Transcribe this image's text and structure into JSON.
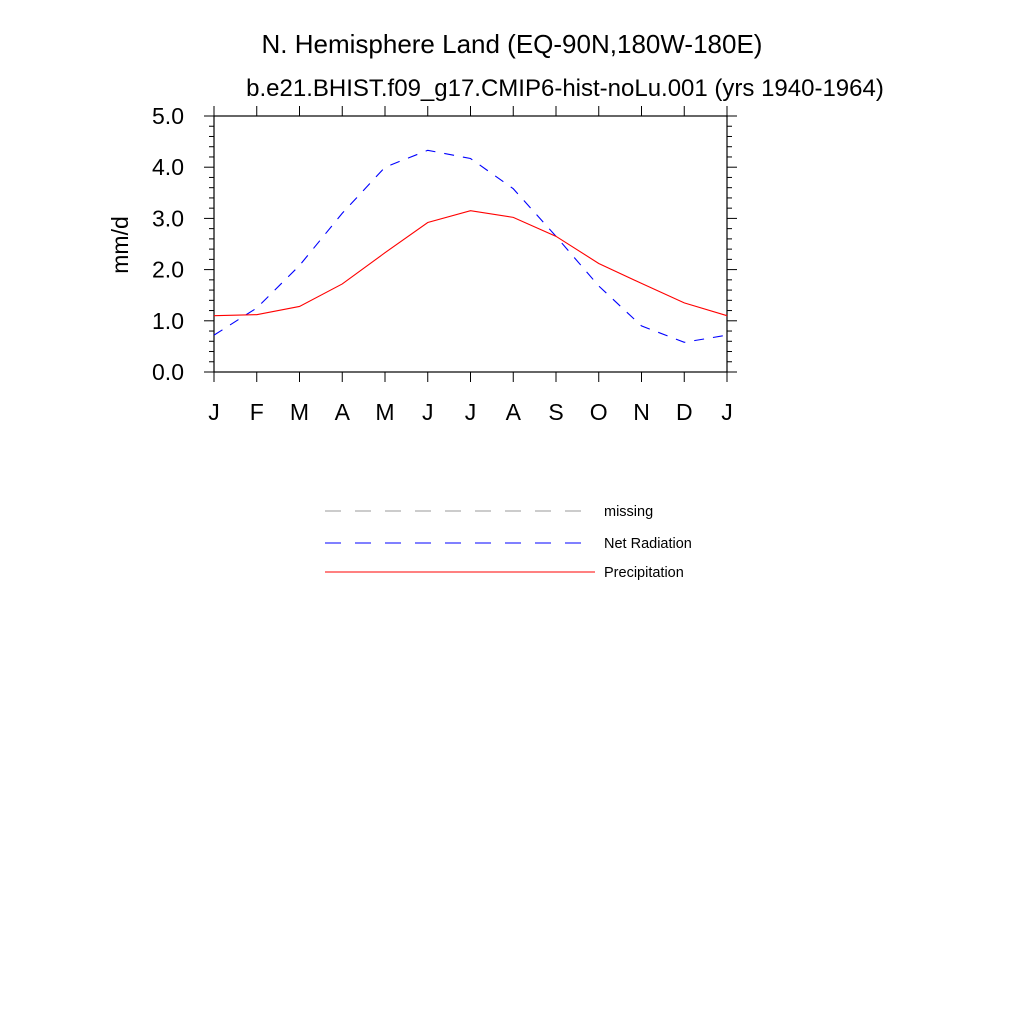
{
  "chart_data": {
    "type": "line",
    "title": "N. Hemisphere Land (EQ-90N,180W-180E)",
    "subtitle": "b.e21.BHIST.f09_g17.CMIP6-hist-noLu.001 (yrs 1940-1964)",
    "xlabel": "",
    "ylabel": "mm/d",
    "categories": [
      "J",
      "F",
      "M",
      "A",
      "M",
      "J",
      "J",
      "A",
      "S",
      "O",
      "N",
      "D",
      "J"
    ],
    "ylim": [
      0,
      5
    ],
    "yticks": [
      "0.0",
      "1.0",
      "2.0",
      "3.0",
      "4.0",
      "5.0"
    ],
    "grid": false,
    "legend_position": "bottom",
    "legend": [
      "missing",
      "Net Radiation",
      "Precipitation"
    ],
    "series": [
      {
        "name": "Net Radiation",
        "color": "#0000ff",
        "style": "dashed",
        "values": [
          0.72,
          1.25,
          2.08,
          3.1,
          4.0,
          4.33,
          4.17,
          3.58,
          2.65,
          1.68,
          0.9,
          0.58,
          0.72
        ]
      },
      {
        "name": "Precipitation",
        "color": "#ff0000",
        "style": "solid",
        "values": [
          1.1,
          1.12,
          1.28,
          1.72,
          2.33,
          2.92,
          3.15,
          3.02,
          2.65,
          2.12,
          1.73,
          1.35,
          1.1
        ]
      }
    ],
    "legend_items": [
      {
        "label": "missing",
        "color": "#999999",
        "style": "dashed"
      },
      {
        "label": "Net Radiation",
        "color": "#0000ff",
        "style": "dashed"
      },
      {
        "label": "Precipitation",
        "color": "#ff0000",
        "style": "solid"
      }
    ]
  }
}
